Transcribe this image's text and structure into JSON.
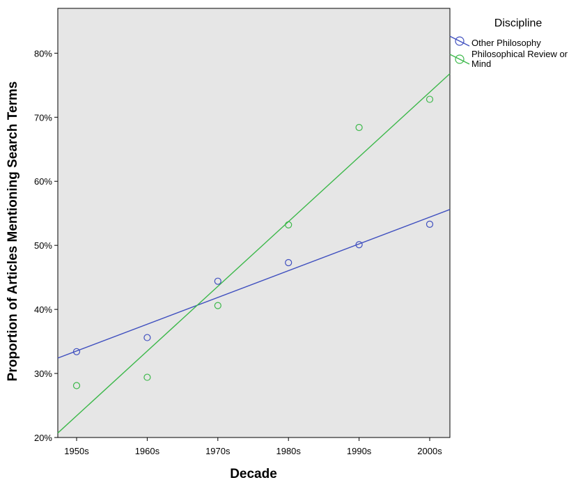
{
  "chart_data": {
    "type": "scatter",
    "xlabel": "Decade",
    "ylabel": "Proportion of Articles Mentioning Search Terms",
    "categories": [
      "1950s",
      "1960s",
      "1970s",
      "1980s",
      "1990s",
      "2000s"
    ],
    "ylim": [
      20,
      87
    ],
    "yticks": [
      "20%",
      "30%",
      "40%",
      "50%",
      "60%",
      "70%",
      "80%"
    ],
    "grid": false,
    "legend": {
      "title": "Discipline",
      "placement": "right"
    },
    "series": [
      {
        "name": "Other Philosophy",
        "color": "#3f4fbf",
        "values": [
          33.4,
          35.6,
          44.4,
          47.3,
          50.1,
          53.3
        ],
        "fit_line": {
          "start": 32.4,
          "end": 55.6
        }
      },
      {
        "name": "Philosophical Review or Mind",
        "color": "#3cb84a",
        "values": [
          28.1,
          29.4,
          40.6,
          53.2,
          68.4,
          72.8
        ],
        "fit_line": {
          "start": 20.7,
          "end": 76.8
        }
      }
    ],
    "plot_background": "#e6e6e6"
  }
}
